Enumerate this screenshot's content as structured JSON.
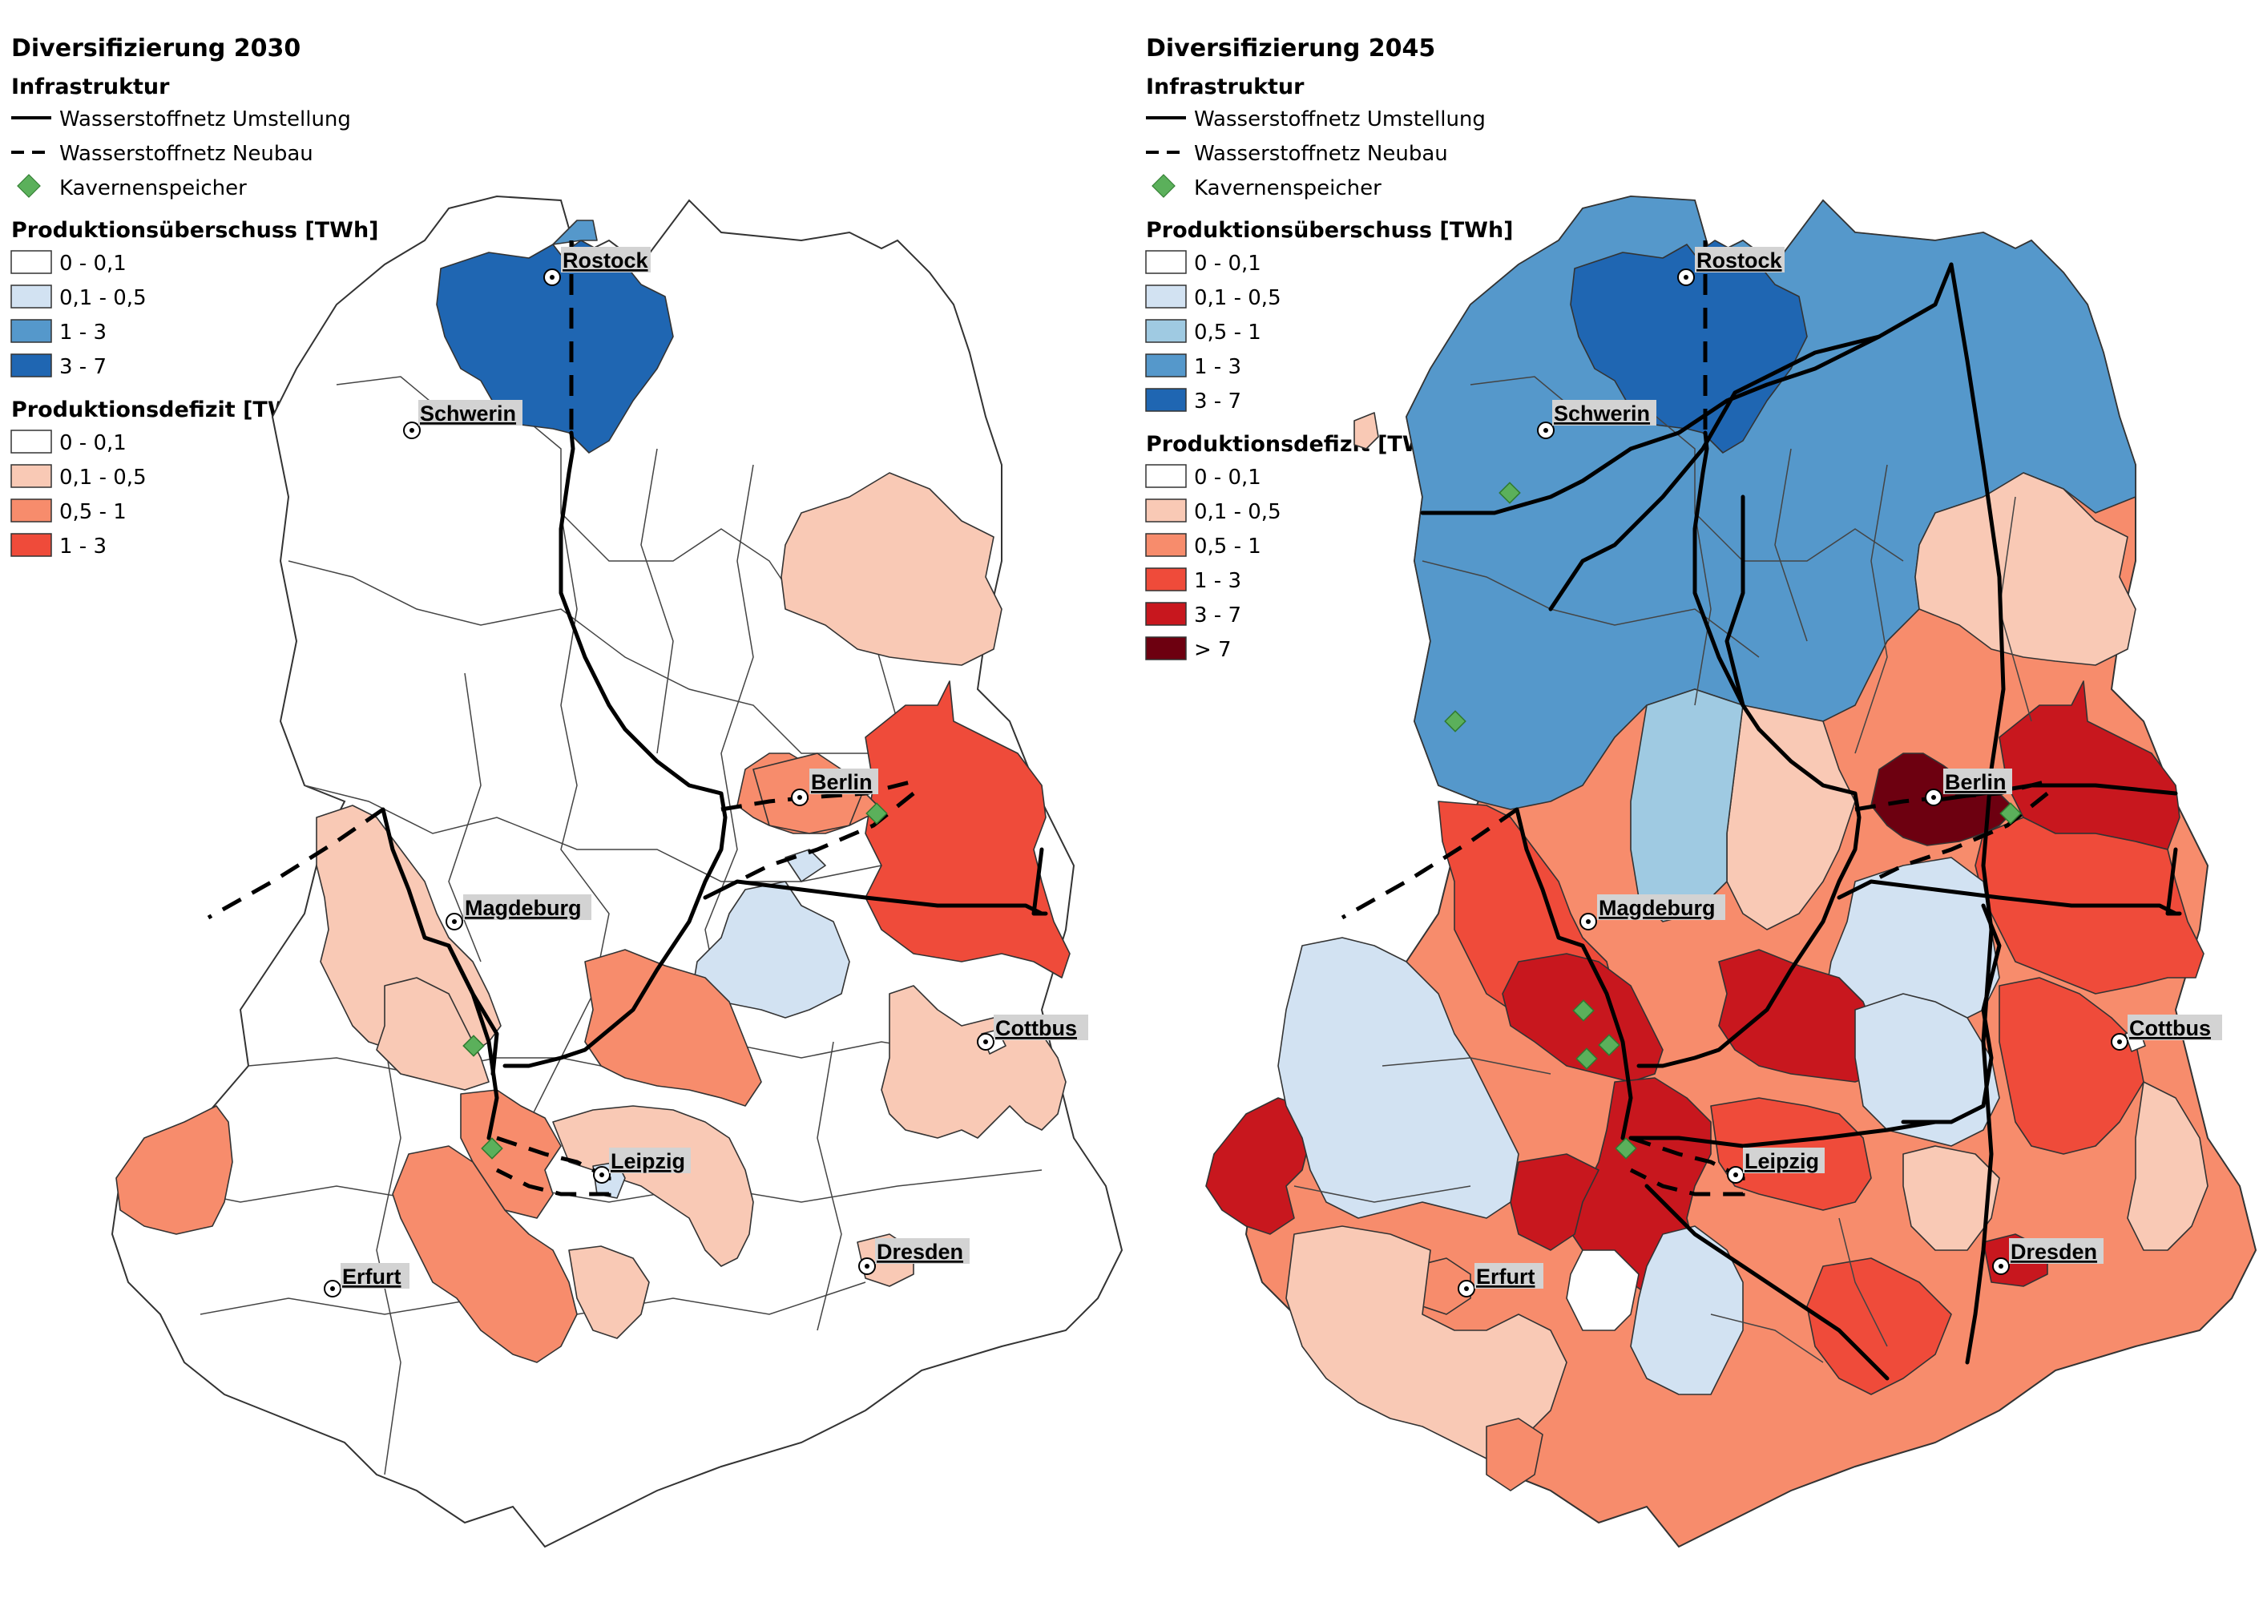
{
  "colors": {
    "surplus": [
      "#ffffff",
      "#d2e2f2",
      "#9fcae2",
      "#5598cb",
      "#1f66b2"
    ],
    "deficit": [
      "#ffffff",
      "#f9c9b5",
      "#f78c6c",
      "#ef4b3a",
      "#c8171e",
      "#6d0010"
    ],
    "storage": "#5bb05b",
    "label_bg": "#d3d3d3"
  },
  "maps": [
    {
      "title": "Diversifizierung 2030",
      "legend": {
        "infrastructure_heading": "Infrastruktur",
        "pipeline_conversion": "Wasserstoffnetz Umstellung",
        "pipeline_new": "Wasserstoffnetz Neubau",
        "storage": "Kavernenspeicher",
        "surplus_heading": "Produktionsüberschuss [TWh]",
        "surplus_classes": [
          "0 - 0,1",
          "0,1 - 0,5",
          "1 - 3",
          "3 - 7"
        ],
        "deficit_heading": "Produktionsdefizit [TWh]",
        "deficit_classes": [
          "0 - 0,1",
          "0,1 - 0,5",
          "0,5 - 1",
          "1 - 3"
        ]
      }
    },
    {
      "title": "Diversifizierung 2045",
      "legend": {
        "infrastructure_heading": "Infrastruktur",
        "pipeline_conversion": "Wasserstoffnetz Umstellung",
        "pipeline_new": "Wasserstoffnetz Neubau",
        "storage": "Kavernenspeicher",
        "surplus_heading": "Produktionsüberschuss [TWh]",
        "surplus_classes": [
          "0 - 0,1",
          "0,1 - 0,5",
          "0,5 - 1",
          "1 - 3",
          "3 - 7"
        ],
        "deficit_heading": "Produktionsdefizit [TWh]",
        "deficit_classes": [
          "0 - 0,1",
          "0,1 - 0,5",
          "0,5 - 1",
          "1 - 3",
          "3 - 7",
          "> 7"
        ]
      }
    }
  ],
  "cities": [
    "Rostock",
    "Schwerin",
    "Berlin",
    "Magdeburg",
    "Cottbus",
    "Leipzig",
    "Dresden",
    "Erfurt"
  ]
}
